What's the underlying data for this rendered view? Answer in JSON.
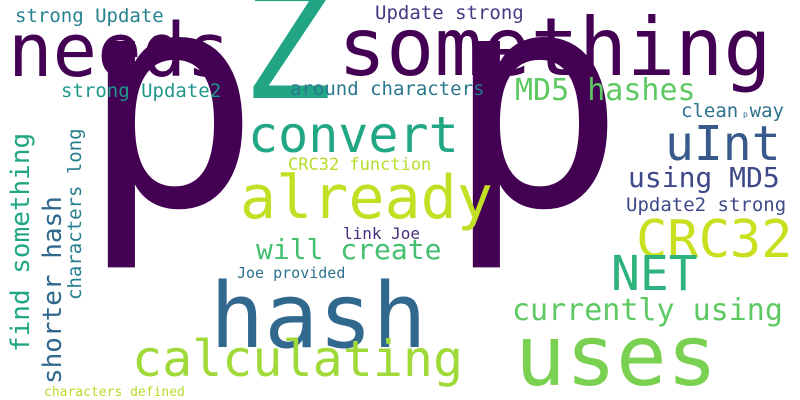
{
  "words": [
    {
      "text": "p",
      "color": "#440154",
      "rotate": false
    },
    {
      "text": "p",
      "color": "#440154",
      "rotate": false
    },
    {
      "text": "Z",
      "color": "#21a585",
      "rotate": false
    },
    {
      "text": "needs",
      "color": "#440154",
      "rotate": false
    },
    {
      "text": "something",
      "color": "#440154",
      "rotate": false
    },
    {
      "text": "hash",
      "color": "#31688e",
      "rotate": false
    },
    {
      "text": "uses",
      "color": "#7ad151",
      "rotate": false
    },
    {
      "text": "already",
      "color": "#c2df23",
      "rotate": false
    },
    {
      "text": "calculating",
      "color": "#a0da39",
      "rotate": false
    },
    {
      "text": "convert",
      "color": "#22a785",
      "rotate": false
    },
    {
      "text": "CRC32",
      "color": "#c8e020",
      "rotate": false
    },
    {
      "text": "NET",
      "color": "#2db27d",
      "rotate": false
    },
    {
      "text": "uInt",
      "color": "#38598c",
      "rotate": false
    },
    {
      "text": "currently using",
      "color": "#5ec962",
      "rotate": false
    },
    {
      "text": "MD5 hashes",
      "color": "#5ec962",
      "rotate": false
    },
    {
      "text": "using MD5",
      "color": "#3e4989",
      "rotate": false
    },
    {
      "text": "will create",
      "color": "#44bf70",
      "rotate": false
    },
    {
      "text": "around characters",
      "color": "#2a788e",
      "rotate": false
    },
    {
      "text": "Update strong",
      "color": "#443983",
      "rotate": false
    },
    {
      "text": "strong Update",
      "color": "#26828e",
      "rotate": false
    },
    {
      "text": "strong Update2",
      "color": "#1f988b",
      "rotate": false
    },
    {
      "text": "clean way",
      "color": "#2c728e",
      "rotate": false
    },
    {
      "text": "Update2 strong",
      "color": "#3e4989",
      "rotate": false
    },
    {
      "text": "CRC32 function",
      "color": "#b5de2b",
      "rotate": false
    },
    {
      "text": "link Joe",
      "color": "#472d7b",
      "rotate": false
    },
    {
      "text": "Joe provided",
      "color": "#2c728e",
      "rotate": false
    },
    {
      "text": "characters defined",
      "color": "#b5de2b",
      "rotate": false
    },
    {
      "text": "find something",
      "color": "#22a785",
      "rotate": true
    },
    {
      "text": "shorter hash",
      "color": "#31688e",
      "rotate": true
    },
    {
      "text": "characters long",
      "color": "#277f8e",
      "rotate": true
    },
    {
      "text": "p",
      "color": "#31688e",
      "rotate": false
    }
  ]
}
